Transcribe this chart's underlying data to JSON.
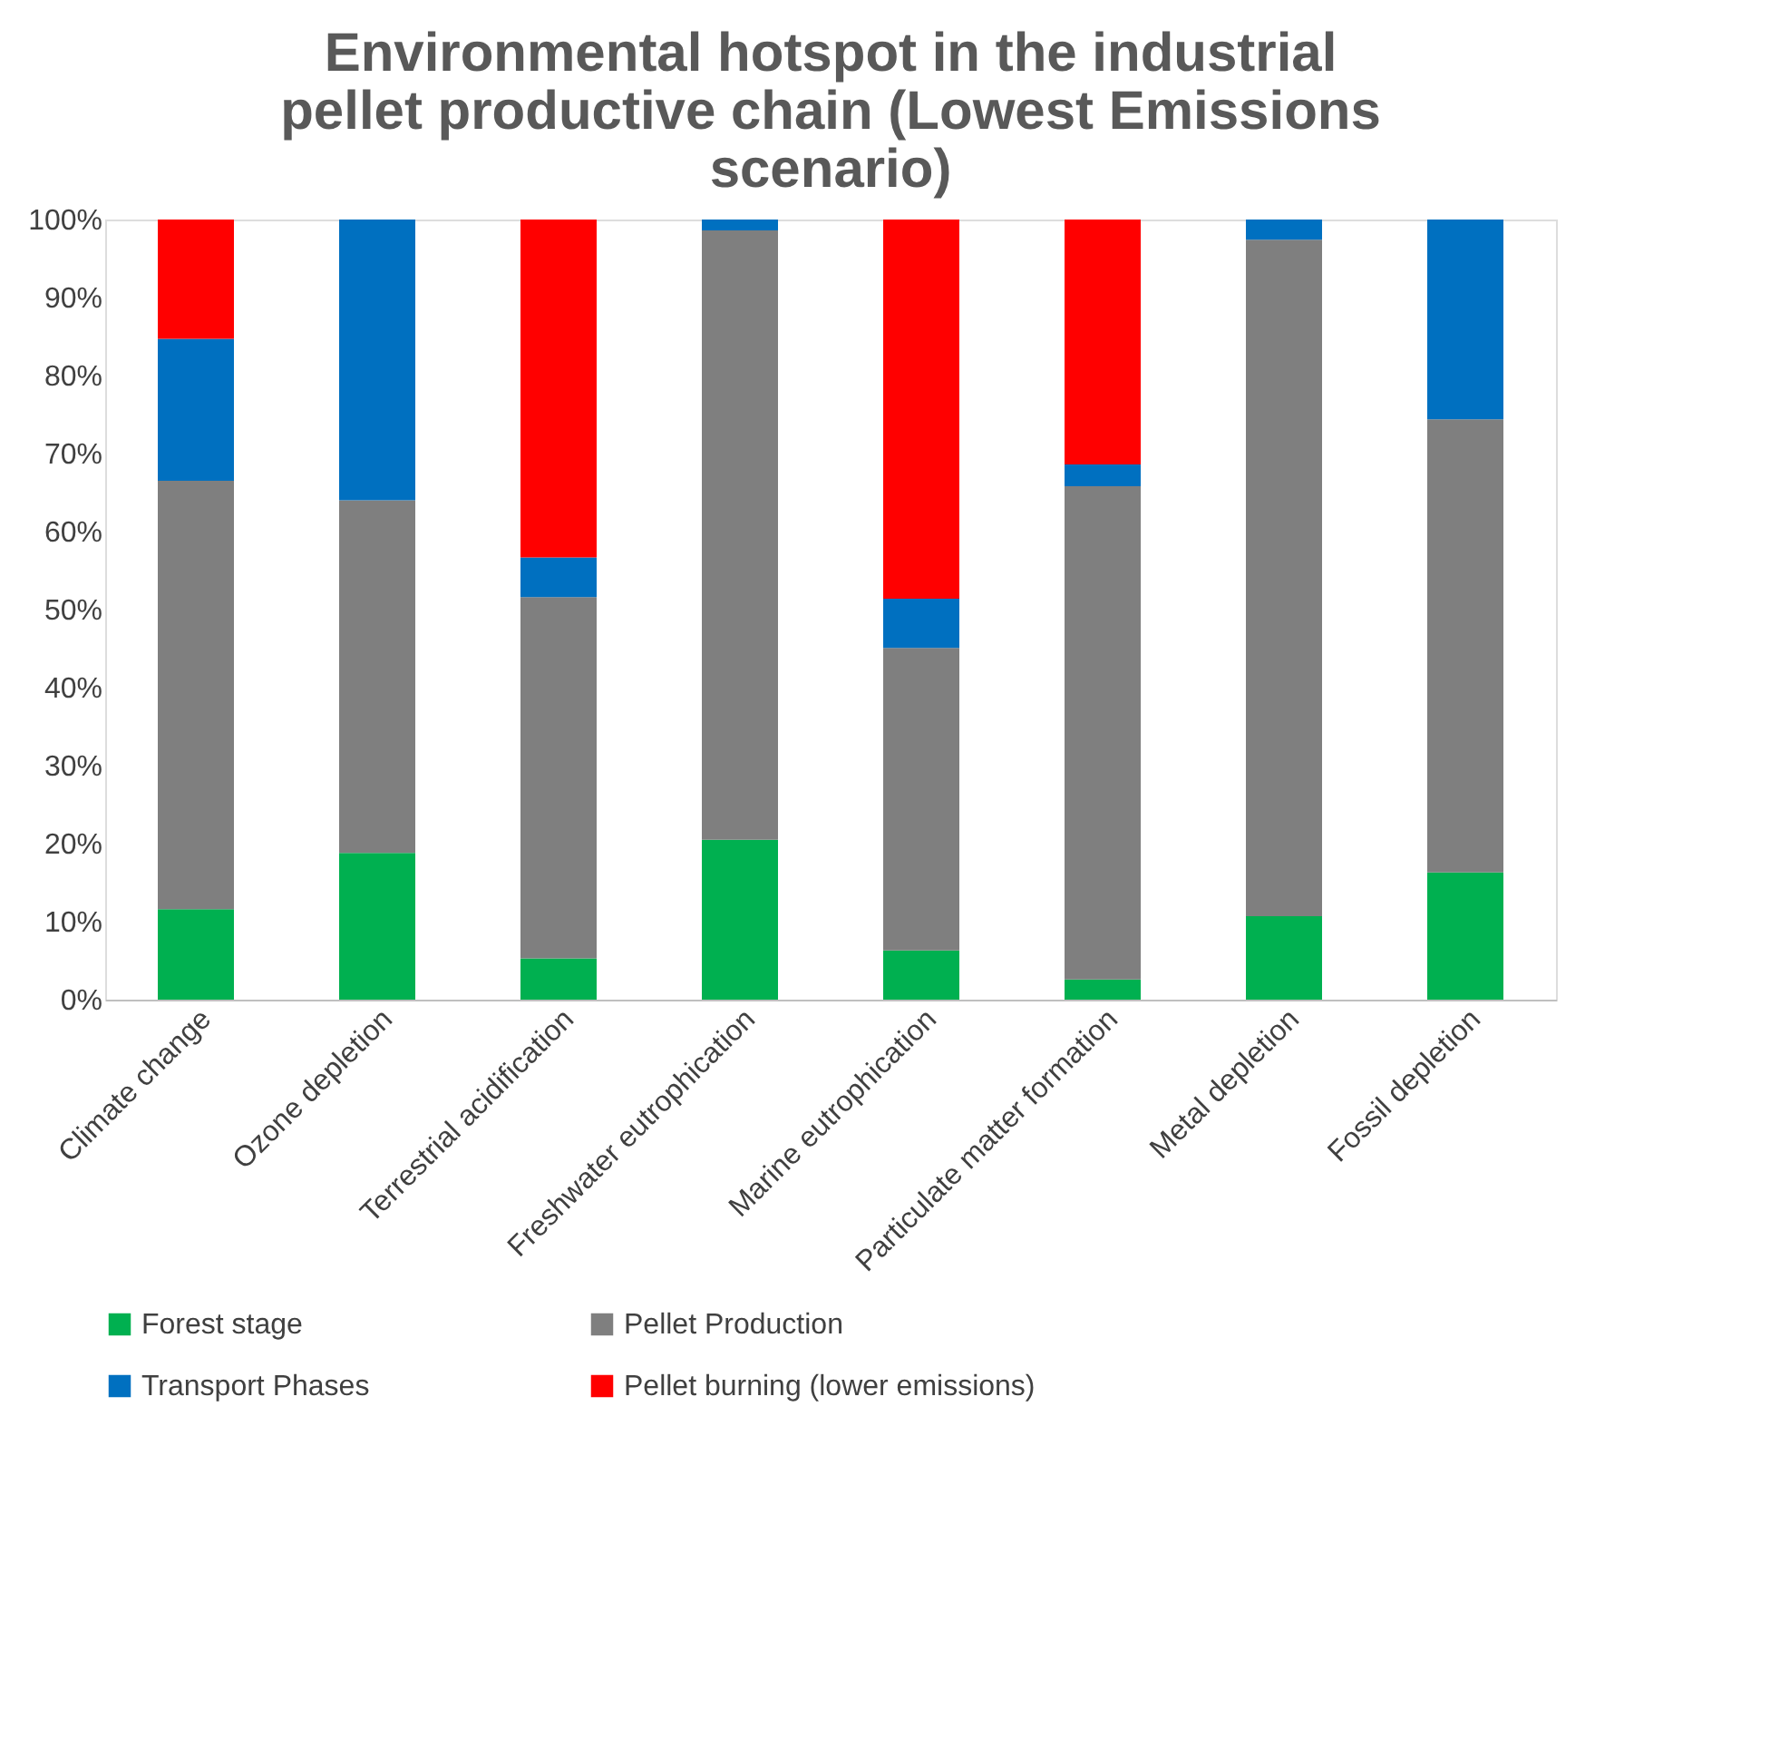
{
  "chart_data": {
    "type": "bar",
    "stacked": true,
    "title": "Environmental hotspot in the industrial pellet productive chain (Lowest Emissions scenario)",
    "categories": [
      "Climate change",
      "Ozone depletion",
      "Terrestrial acidification",
      "Freshwater eutrophication",
      "Marine eutrophication",
      "Particulate matter formation",
      "Metal depletion",
      "Fossil depletion"
    ],
    "series": [
      {
        "name": "Forest stage",
        "color": "#00b050",
        "values": [
          11.6,
          18.8,
          5.3,
          20.5,
          6.3,
          2.6,
          10.7,
          16.3
        ]
      },
      {
        "name": "Pellet Production",
        "color": "#7f7f7f",
        "values": [
          54.9,
          45.2,
          46.3,
          78.1,
          38.8,
          63.2,
          86.7,
          58.1
        ]
      },
      {
        "name": "Transport Phases",
        "color": "#0070c0",
        "values": [
          18.2,
          36.0,
          5.1,
          1.4,
          6.3,
          2.8,
          2.6,
          25.6
        ]
      },
      {
        "name": "Pellet burning (lower emissions)",
        "color": "#ff0000",
        "values": [
          15.3,
          0,
          43.3,
          0,
          48.6,
          31.4,
          0,
          0
        ]
      }
    ],
    "ylim": [
      0,
      100
    ],
    "yticks": [
      {
        "value": 0,
        "label": "0%"
      },
      {
        "value": 10,
        "label": "10%"
      },
      {
        "value": 20,
        "label": "20%"
      },
      {
        "value": 30,
        "label": "30%"
      },
      {
        "value": 40,
        "label": "40%"
      },
      {
        "value": 50,
        "label": "50%"
      },
      {
        "value": 60,
        "label": "60%"
      },
      {
        "value": 70,
        "label": "70%"
      },
      {
        "value": 80,
        "label": "80%"
      },
      {
        "value": 90,
        "label": "90%"
      },
      {
        "value": 100,
        "label": "100%"
      }
    ],
    "grid": false,
    "legend": "bottom"
  }
}
